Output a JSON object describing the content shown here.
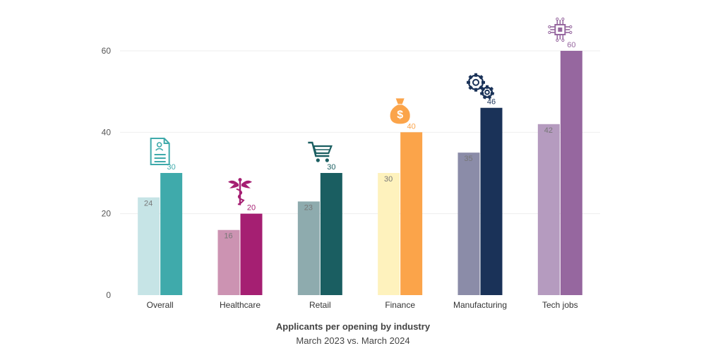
{
  "chart_data": {
    "type": "bar",
    "title": "Applicants per opening by industry",
    "subtitle": "March 2023 vs. March 2024",
    "xlabel": "",
    "ylabel": "",
    "ylim": [
      0,
      60
    ],
    "yticks": [
      0,
      20,
      40,
      60
    ],
    "grid": true,
    "categories": [
      "Overall",
      "Healthcare",
      "Retail",
      "Finance",
      "Manufacturing",
      "Tech jobs"
    ],
    "series": [
      {
        "values": [
          24,
          16,
          23,
          30,
          35,
          42
        ]
      },
      {
        "values": [
          30,
          20,
          30,
          40,
          46,
          60
        ]
      }
    ],
    "colors_2023": [
      "#c6e4e6",
      "#cc93b2",
      "#8eabae",
      "#fef2bd",
      "#8b8ca8",
      "#b59bbf"
    ],
    "colors_2024": [
      "#3faaab",
      "#a51f72",
      "#1a5e61",
      "#fba44a",
      "#1a3258",
      "#96679f"
    ],
    "icons": [
      "document-person-icon",
      "caduceus-icon",
      "shopping-cart-icon",
      "money-bag-icon",
      "gears-icon",
      "circuit-chip-icon"
    ]
  }
}
